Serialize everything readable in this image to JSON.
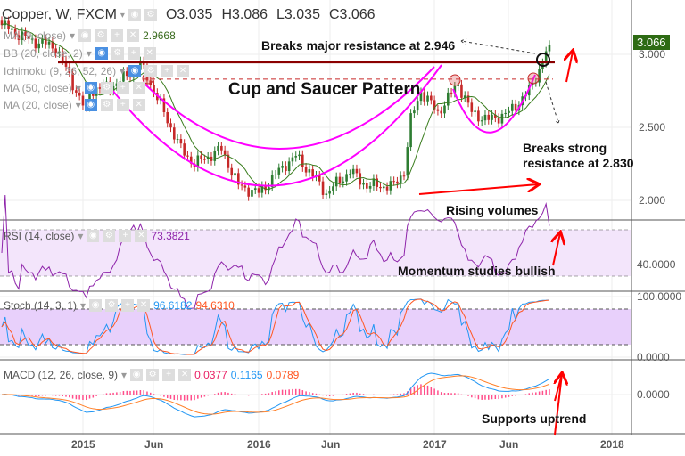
{
  "header": {
    "symbol": "Copper, W, FXCM",
    "open": "O3.035",
    "high": "H3.086",
    "low": "L3.035",
    "close": "C3.066"
  },
  "legends": {
    "ma9": "MA (9, close)",
    "ma9_value": "2.9668",
    "bb": "BB (20, close, 2)",
    "ichimoku": "Ichimoku (9, 26, 52, 26)",
    "ma50": "MA (50, close)",
    "ma20": "MA (20, close)",
    "rsi": "RSI (14, close)",
    "rsi_value": "73.3821",
    "stoch": "Stoch (14, 3, 1)",
    "stoch_k": "96.6182",
    "stoch_d": "94.6310",
    "macd": "MACD (12, 26, close, 9)",
    "macd_hist": "0.0377",
    "macd_line": "0.1165",
    "macd_signal": "0.0789"
  },
  "annotations": {
    "major": "Breaks major resistance at 2.946",
    "pattern": "Cup and Saucer Pattern",
    "strong1": "Breaks strong",
    "strong2": "resistance at 2.830",
    "volumes": "Rising volumes",
    "momentum": "Momentum studies bullish",
    "uptrend": "Supports uptrend"
  },
  "axes": {
    "price_ticks": [
      "3.000",
      "2.500",
      "2.000"
    ],
    "last_price": "3.066",
    "rsi_tick": "40.0000",
    "stoch_ticks": [
      "100.0000",
      "0.0000"
    ],
    "macd_tick": "0.0000",
    "time_ticks": [
      "2015",
      "Jun",
      "2016",
      "Jun",
      "2017",
      "Jun",
      "2018"
    ]
  },
  "colors": {
    "up": "#2e7d32",
    "down": "#c62828",
    "resistance": "#8b0000",
    "cup": "#ff00ff",
    "rsi": "#8e24aa",
    "stoch_k": "#2196f3",
    "stoch_d": "#ff5722",
    "last_price_bg": "#2e6b14"
  },
  "chart_data": {
    "type": "candlestick",
    "title": "Copper, W, FXCM",
    "x_unit": "weeks since Jul 2014",
    "ylim": [
      1.8,
      3.25
    ],
    "keypoints": [
      [
        0,
        3.2
      ],
      [
        8,
        3.1
      ],
      [
        16,
        3.05
      ],
      [
        25,
        2.6
      ],
      [
        26,
        2.75
      ],
      [
        34,
        2.8
      ],
      [
        41,
        2.93
      ],
      [
        43,
        2.85
      ],
      [
        47,
        2.65
      ],
      [
        53,
        2.35
      ],
      [
        57,
        2.25
      ],
      [
        65,
        2.35
      ],
      [
        70,
        2.1
      ],
      [
        76,
        2.05
      ],
      [
        84,
        2.25
      ],
      [
        87,
        2.3
      ],
      [
        91,
        2.2
      ],
      [
        96,
        2.05
      ],
      [
        103,
        2.2
      ],
      [
        108,
        2.1
      ],
      [
        116,
        2.1
      ],
      [
        119,
        2.2
      ],
      [
        121,
        2.55
      ],
      [
        124,
        2.75
      ],
      [
        129,
        2.6
      ],
      [
        135,
        2.8
      ],
      [
        139,
        2.6
      ],
      [
        144,
        2.55
      ],
      [
        150,
        2.6
      ],
      [
        156,
        2.75
      ],
      [
        160,
        2.95
      ],
      [
        162,
        3.066
      ]
    ],
    "resistance_levels": [
      2.946,
      2.83
    ]
  }
}
